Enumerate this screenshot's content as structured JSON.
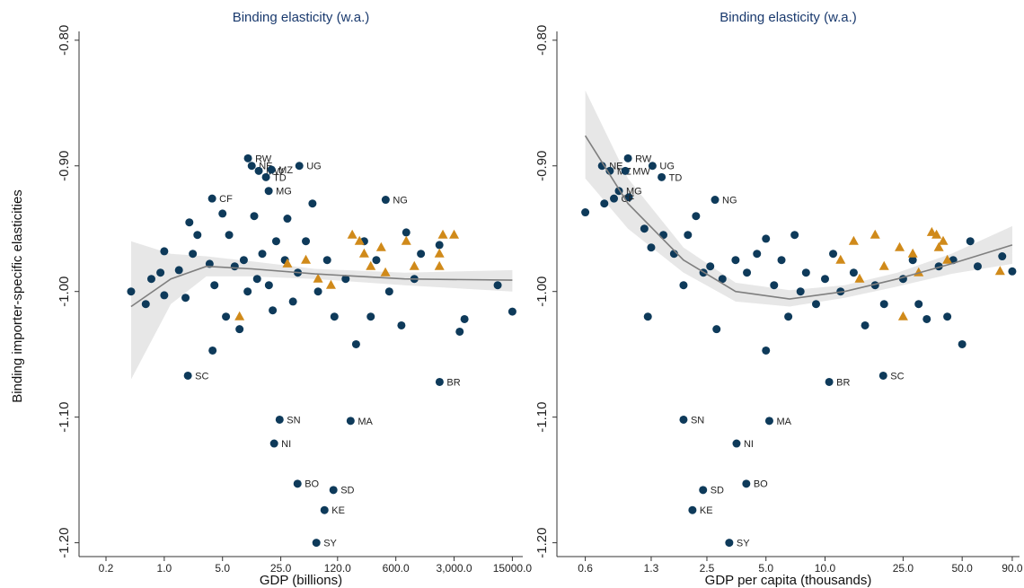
{
  "chart_data": [
    {
      "type": "scatter",
      "title": "Binding elasticity (w.a.)",
      "x_label": "GDP (billions)",
      "y_label": "Binding importer-specific elasticities",
      "xscale": "log",
      "xlim": [
        0.095,
        20000
      ],
      "ylim": [
        -1.211,
        -0.793
      ],
      "xticks": [
        0.2,
        {
          "value": 1,
          "label": "1.0"
        },
        {
          "value": 5,
          "label": "5.0"
        },
        {
          "value": 25,
          "label": "25.0"
        },
        {
          "value": 120,
          "label": "120.0"
        },
        {
          "value": 600,
          "label": "600.0"
        },
        {
          "value": 3000,
          "label": "3,000.0"
        },
        {
          "value": 15000,
          "label": "15000.0"
        }
      ],
      "yticks": [
        {
          "value": -0.8,
          "label": "-0.80"
        },
        {
          "value": -0.9,
          "label": "-0.90"
        },
        {
          "value": -1,
          "label": "-1.00"
        },
        {
          "value": -1.1,
          "label": "-1.10"
        },
        {
          "value": -1.2,
          "label": "-1.20"
        }
      ],
      "series": [
        {
          "color": "#0e3a5a",
          "marker": "circle",
          "x": [
            0.4,
            0.6,
            0.7,
            0.9,
            1.0,
            1.0,
            1.5,
            1.8,
            2.0,
            2.2,
            2.5,
            3.5,
            3.8,
            4,
            5,
            5.5,
            6,
            7,
            8,
            9,
            10,
            12,
            13,
            15,
            18,
            20,
            22,
            28,
            30,
            35,
            40,
            50,
            60,
            70,
            90,
            110,
            150,
            200,
            250,
            300,
            350,
            500,
            700,
            800,
            1000,
            1200,
            2000,
            3500,
            4000,
            10000,
            15000
          ],
          "values": [
            -1.0,
            -1.01,
            -0.99,
            -0.985,
            -1.003,
            -0.968,
            -0.983,
            -1.005,
            -0.945,
            -0.97,
            -0.955,
            -0.978,
            -1.047,
            -0.995,
            -0.938,
            -1.02,
            -0.955,
            -0.98,
            -1.03,
            -0.975,
            -1.0,
            -0.94,
            -0.99,
            -0.97,
            -0.995,
            -1.015,
            -0.96,
            -0.975,
            -0.942,
            -1.008,
            -0.985,
            -0.96,
            -0.93,
            -1.0,
            -0.975,
            -1.02,
            -0.99,
            -1.042,
            -0.96,
            -1.02,
            -0.975,
            -1.0,
            -1.027,
            -0.953,
            -0.99,
            -0.97,
            -0.963,
            -1.032,
            -1.022,
            -0.995,
            -1.016
          ]
        },
        {
          "color": "#0e3a5a",
          "marker": "circle",
          "labels": [
            "RW",
            "NE",
            "MW",
            "MZ",
            "TD",
            "UG",
            "MG",
            "CF",
            "NG",
            "SC",
            "BR",
            "SN",
            "MA",
            "NI",
            "BO",
            "SD",
            "KE",
            "SY"
          ],
          "x": [
            10.1,
            11.2,
            13.6,
            19.3,
            16.6,
            41.7,
            17.9,
            3.75,
            453,
            1.92,
            2010,
            24.2,
            172,
            20.8,
            39.7,
            107,
            83.6,
            66.8
          ],
          "values": [
            -0.894,
            -0.9,
            -0.904,
            -0.903,
            -0.909,
            -0.9,
            -0.92,
            -0.926,
            -0.927,
            -1.067,
            -1.072,
            -1.102,
            -1.103,
            -1.121,
            -1.153,
            -1.158,
            -1.174,
            -1.2
          ]
        },
        {
          "color": "#d08a1a",
          "marker": "triangle",
          "x": [
            8,
            30,
            50,
            70,
            100,
            180,
            220,
            250,
            300,
            400,
            450,
            800,
            1000,
            2000,
            2200,
            3000,
            2000
          ],
          "values": [
            -1.02,
            -0.978,
            -0.975,
            -0.99,
            -0.995,
            -0.955,
            -0.96,
            -0.97,
            -0.98,
            -0.965,
            -0.985,
            -0.96,
            -0.98,
            -0.98,
            -0.955,
            -0.955,
            -0.97
          ]
        }
      ],
      "fit": {
        "color": "#7f7f7f",
        "band_color": "#e3e3e3",
        "x": [
          0.4,
          1.2,
          3.2,
          11.2,
          64,
          762,
          15000
        ],
        "values": [
          -1.012,
          -0.99,
          -0.98,
          -0.982,
          -0.986,
          -0.99,
          -0.991
        ],
        "upper": [
          -0.96,
          -0.97,
          -0.972,
          -0.976,
          -0.982,
          -0.985,
          -0.983
        ],
        "lower": [
          -1.07,
          -1.01,
          -0.988,
          -0.988,
          -0.99,
          -0.995,
          -1.0
        ]
      }
    },
    {
      "type": "scatter",
      "title": "Binding elasticity (w.a.)",
      "x_label": "GDP per capita (thousands)",
      "xscale": "log",
      "xlim": [
        0.43,
        98
      ],
      "ylim": [
        -1.211,
        -0.793
      ],
      "xticks": [
        0.6,
        1.3,
        2.5,
        {
          "value": 5,
          "label": "5.0"
        },
        {
          "value": 10,
          "label": "10.0"
        },
        {
          "value": 25,
          "label": "25.0"
        },
        {
          "value": 50,
          "label": "50.0"
        },
        {
          "value": 90,
          "label": "90.0"
        }
      ],
      "yticks": [
        {
          "value": -0.8,
          "label": "-0.80"
        },
        {
          "value": -0.9,
          "label": "-0.90"
        },
        {
          "value": -1,
          "label": "-1.00"
        },
        {
          "value": -1.1,
          "label": "-1.10"
        },
        {
          "value": -1.2,
          "label": "-1.20"
        }
      ],
      "series": [
        {
          "color": "#0e3a5a",
          "marker": "circle",
          "x": [
            0.6,
            0.75,
            1.0,
            1.2,
            1.25,
            1.3,
            1.5,
            1.7,
            1.9,
            2.0,
            2.2,
            2.4,
            2.6,
            2.8,
            3,
            3.5,
            4,
            4.5,
            5,
            5,
            5.5,
            6,
            6.5,
            7,
            7.5,
            8,
            9,
            10,
            11,
            12,
            14,
            16,
            18,
            20,
            25,
            28,
            30,
            33,
            38,
            42,
            45,
            50,
            55,
            60,
            80,
            90
          ],
          "values": [
            -0.937,
            -0.93,
            -0.925,
            -0.95,
            -1.02,
            -0.965,
            -0.955,
            -0.97,
            -0.995,
            -0.955,
            -0.94,
            -0.985,
            -0.98,
            -1.03,
            -0.99,
            -0.975,
            -0.985,
            -0.97,
            -0.958,
            -1.047,
            -0.995,
            -0.975,
            -1.02,
            -0.955,
            -1.0,
            -0.985,
            -1.01,
            -0.99,
            -0.97,
            -1.0,
            -0.985,
            -1.027,
            -0.995,
            -1.01,
            -0.99,
            -0.975,
            -1.01,
            -1.022,
            -0.98,
            -1.02,
            -0.975,
            -1.042,
            -0.96,
            -0.98,
            -0.972,
            -0.984
          ]
        },
        {
          "color": "#0e3a5a",
          "marker": "circle",
          "labels": [
            "RW",
            "NE",
            "MZ",
            "MW",
            "UG",
            "TD",
            "MG",
            "CF",
            "NG",
            "BR",
            "SC",
            "SN",
            "MA",
            "NI",
            "BO",
            "SD",
            "KE",
            "SY"
          ],
          "x": [
            0.99,
            0.73,
            0.8,
            0.96,
            1.32,
            1.47,
            0.89,
            0.84,
            2.75,
            10.5,
            19.8,
            1.9,
            5.2,
            3.54,
            3.97,
            2.39,
            2.11,
            3.25
          ],
          "values": [
            -0.894,
            -0.9,
            -0.904,
            -0.904,
            -0.9,
            -0.909,
            -0.92,
            -0.926,
            -0.927,
            -1.072,
            -1.067,
            -1.102,
            -1.103,
            -1.121,
            -1.153,
            -1.158,
            -1.174,
            -1.2
          ]
        },
        {
          "color": "#d08a1a",
          "marker": "triangle",
          "x": [
            12,
            14,
            15,
            18,
            20,
            24,
            25,
            28,
            30,
            35,
            37,
            38,
            40,
            42,
            78
          ],
          "values": [
            -0.975,
            -0.96,
            -0.99,
            -0.955,
            -0.98,
            -0.965,
            -1.02,
            -0.97,
            -0.985,
            -0.953,
            -0.955,
            -0.965,
            -0.96,
            -0.975,
            -0.984
          ]
        }
      ],
      "fit": {
        "color": "#7f7f7f",
        "band_color": "#e3e3e3",
        "x": [
          0.6,
          0.99,
          1.9,
          3.5,
          6.6,
          12.6,
          23.4,
          44,
          90
        ],
        "values": [
          -0.876,
          -0.93,
          -0.975,
          -1.0,
          -1.006,
          -1.0,
          -0.99,
          -0.978,
          -0.963
        ],
        "upper": [
          -0.84,
          -0.91,
          -0.965,
          -0.993,
          -0.999,
          -0.995,
          -0.985,
          -0.97,
          -0.948
        ],
        "lower": [
          -0.91,
          -0.95,
          -0.985,
          -1.008,
          -1.012,
          -1.005,
          -0.996,
          -0.986,
          -0.978
        ]
      }
    }
  ]
}
